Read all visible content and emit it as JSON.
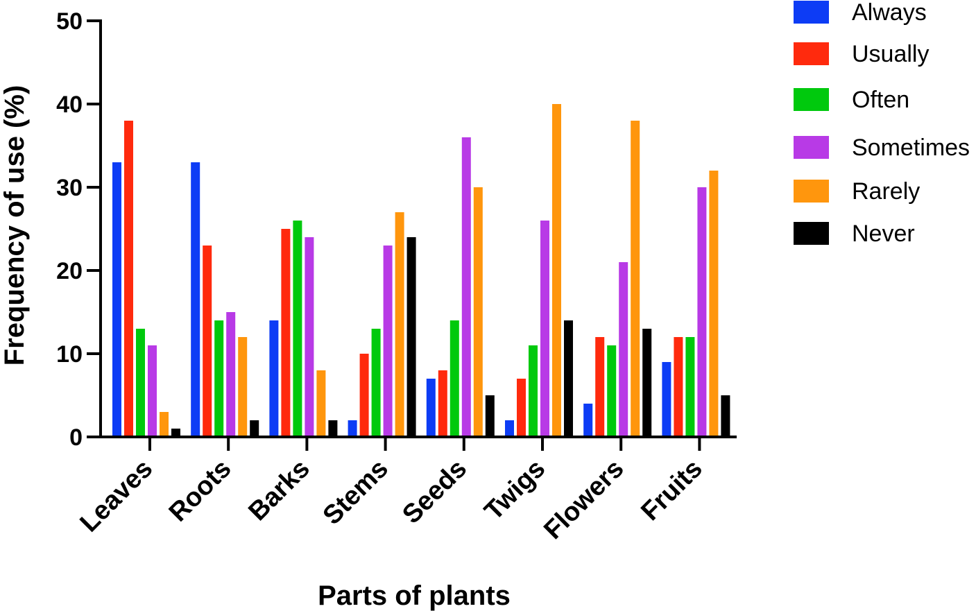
{
  "chart_data": {
    "type": "bar",
    "xlabel": "Parts of plants",
    "ylabel": "Frequency of use (%)",
    "ylim": [
      0,
      50
    ],
    "yticks": [
      0,
      10,
      20,
      30,
      40,
      50
    ],
    "grid": false,
    "legend_position": "top-right",
    "categories": [
      "Leaves",
      "Roots",
      "Barks",
      "Stems",
      "Seeds",
      "Twigs",
      "Flowers",
      "Fruits"
    ],
    "series": [
      {
        "name": "Always",
        "color": "#0d3cf5",
        "values": [
          33,
          33,
          14,
          2,
          7,
          2,
          4,
          9
        ]
      },
      {
        "name": "Usually",
        "color": "#ff2a0d",
        "values": [
          38,
          23,
          25,
          10,
          8,
          7,
          12,
          12
        ]
      },
      {
        "name": "Often",
        "color": "#00c90d",
        "values": [
          13,
          14,
          26,
          13,
          14,
          11,
          11,
          12
        ]
      },
      {
        "name": "Sometimes",
        "color": "#b83ae6",
        "values": [
          11,
          15,
          24,
          23,
          36,
          26,
          21,
          30
        ]
      },
      {
        "name": "Rarely",
        "color": "#ff960d",
        "values": [
          3,
          12,
          8,
          27,
          30,
          40,
          38,
          32
        ]
      },
      {
        "name": "Never",
        "color": "#000000",
        "values": [
          1,
          2,
          2,
          24,
          5,
          14,
          13,
          5
        ]
      }
    ]
  }
}
